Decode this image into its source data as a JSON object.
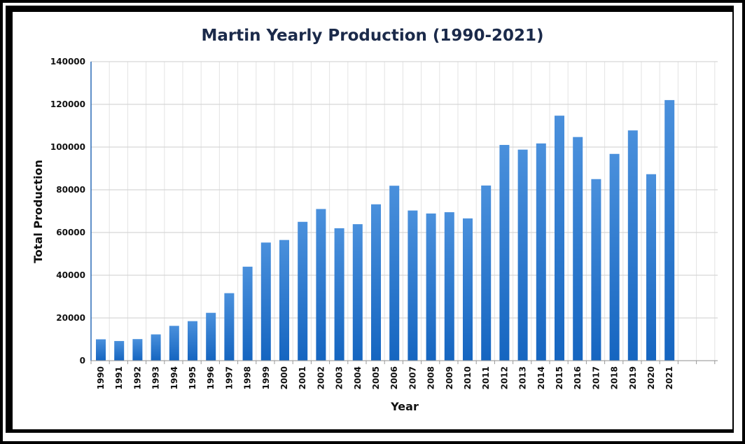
{
  "chart_data": {
    "type": "bar",
    "title": "Martin Yearly Production (1990-2021)",
    "xlabel": "Year",
    "ylabel": "Total Production",
    "ylim": [
      0,
      140000
    ],
    "yticks": [
      0,
      20000,
      40000,
      60000,
      80000,
      100000,
      120000,
      140000
    ],
    "grid": true,
    "bar_color": "#1a6fc9",
    "categories": [
      "1990",
      "1991",
      "1992",
      "1993",
      "1994",
      "1995",
      "1996",
      "1997",
      "1998",
      "1999",
      "2000",
      "2001",
      "2002",
      "2003",
      "2004",
      "2005",
      "2006",
      "2007",
      "2008",
      "2009",
      "2010",
      "2011",
      "2012",
      "2013",
      "2014",
      "2015",
      "2016",
      "2017",
      "2018",
      "2019",
      "2020",
      "2021"
    ],
    "values": [
      10000,
      9200,
      10100,
      12300,
      16300,
      18500,
      22400,
      31600,
      44000,
      55300,
      56500,
      65000,
      71000,
      62000,
      63900,
      73200,
      81900,
      70300,
      68900,
      69500,
      66600,
      82000,
      101000,
      98800,
      101700,
      114700,
      104700,
      85000,
      96800,
      107800,
      87300,
      122000
    ]
  }
}
